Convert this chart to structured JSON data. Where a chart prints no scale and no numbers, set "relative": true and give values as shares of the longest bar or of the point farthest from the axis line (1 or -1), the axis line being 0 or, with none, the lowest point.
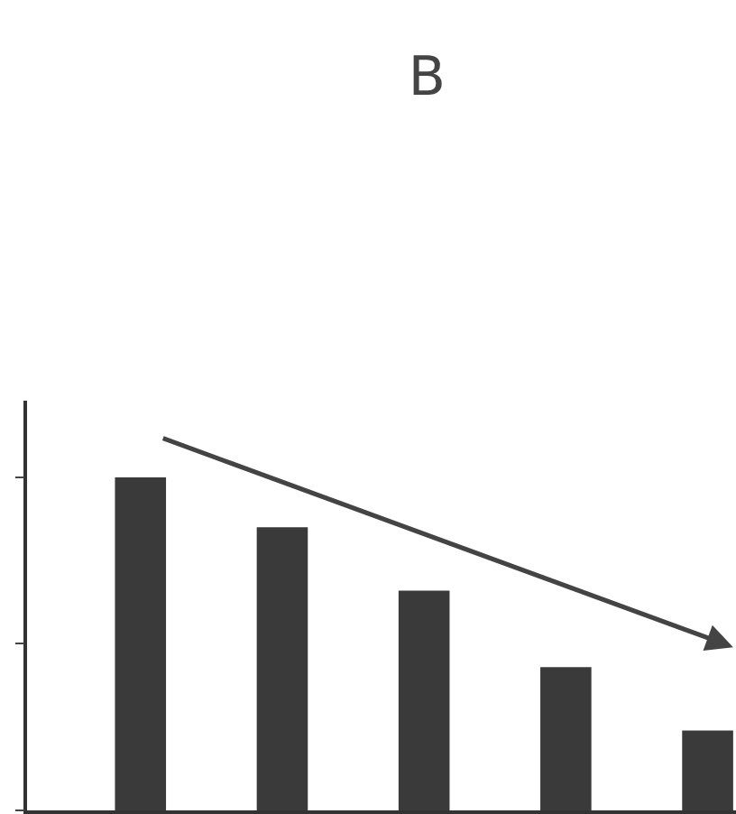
{
  "chart_data": {
    "type": "bar",
    "title": "B",
    "relative": true,
    "categories": [
      null,
      null,
      null,
      null,
      null
    ],
    "values": [
      1,
      0.85,
      0.66,
      0.43,
      0.24
    ],
    "color": "#3a3a3a"
  }
}
